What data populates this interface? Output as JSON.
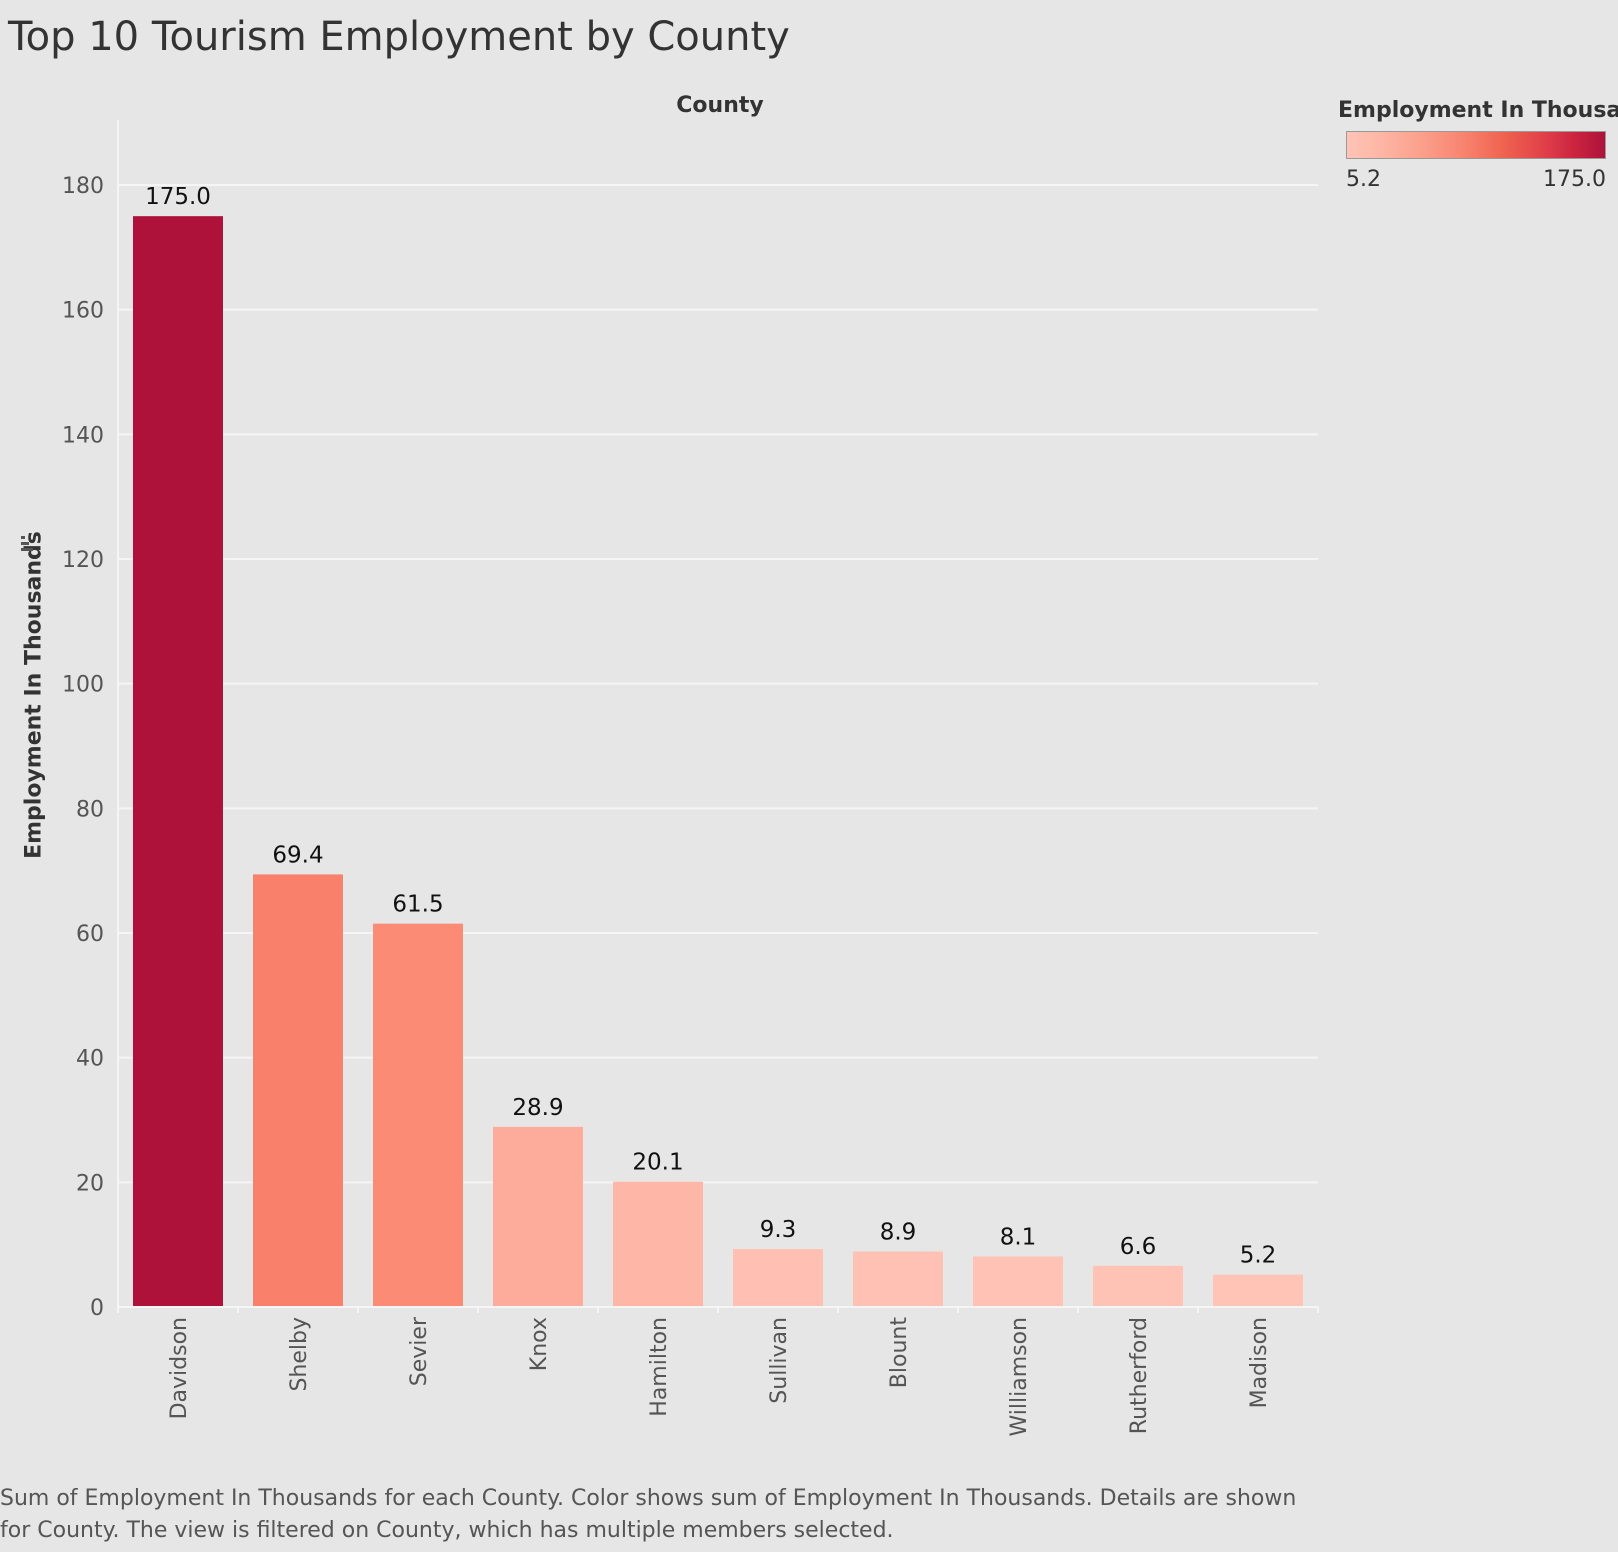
{
  "title": "Top 10 Tourism Employment by County",
  "legend": {
    "title": "Employment In Thousa..",
    "min_label": "5.2",
    "max_label": "175.0",
    "color_low": "#ffc4b6",
    "color_high": "#ae123a"
  },
  "caption": "Sum of Employment In Thousands for each County.  Color shows sum of Employment In Thousands.  Details are shown for County. The view is filtered on County, which has multiple members selected.",
  "chart_data": {
    "type": "bar",
    "xlabel": "County",
    "ylabel": "Employment In Thousands",
    "categories": [
      "Davidson",
      "Shelby",
      "Sevier",
      "Knox",
      "Hamilton",
      "Sullivan",
      "Blount",
      "Williamson",
      "Rutherford",
      "Madison"
    ],
    "values": [
      175.0,
      69.4,
      61.5,
      28.9,
      20.1,
      9.3,
      8.9,
      8.1,
      6.6,
      5.2
    ],
    "value_labels": [
      "175.0",
      "69.4",
      "61.5",
      "28.9",
      "20.1",
      "9.3",
      "8.9",
      "8.1",
      "6.6",
      "5.2"
    ],
    "colors": [
      "#ae123a",
      "#f9806b",
      "#fb8b75",
      "#fdac9c",
      "#feb6a7",
      "#ffc0b3",
      "#ffc1b3",
      "#ffc2b4",
      "#ffc3b5",
      "#ffc4b6"
    ],
    "yticks": [
      0,
      20,
      40,
      60,
      80,
      100,
      120,
      140,
      160,
      180
    ],
    "ylim": [
      0,
      188
    ],
    "grid": true,
    "legend_position": "top-right"
  }
}
